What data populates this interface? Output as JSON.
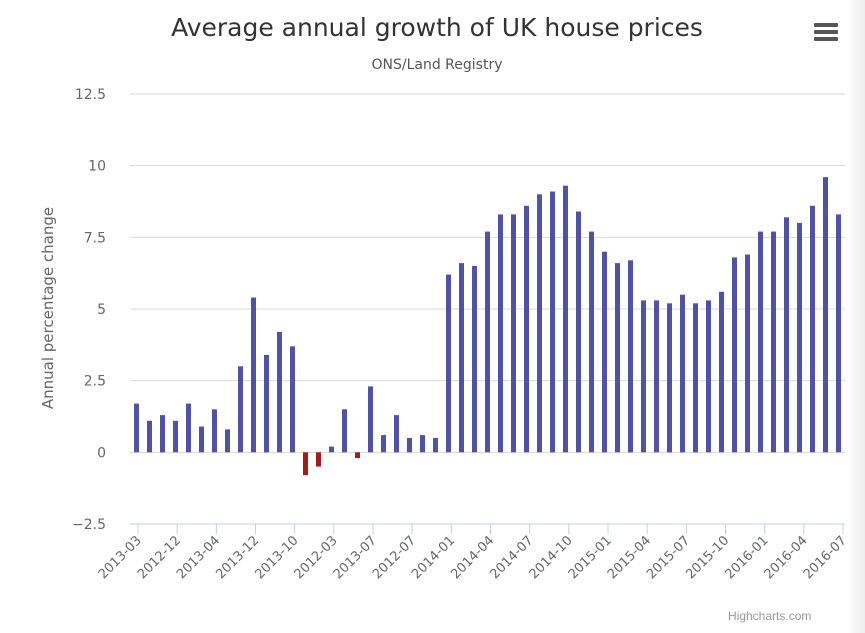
{
  "chart_data": {
    "type": "bar",
    "title": "Average annual growth of UK house prices",
    "subtitle": "ONS/Land Registry",
    "ylabel": "Annual percentage change",
    "xlabel": "",
    "ylim": [
      -2.5,
      12.5
    ],
    "yticks": [
      -2.5,
      0,
      2.5,
      5,
      7.5,
      10,
      12.5
    ],
    "ytick_labels": [
      "−2.5",
      "0",
      "2.5",
      "5",
      "7.5",
      "10",
      "12.5"
    ],
    "grid": true,
    "tick_labels": [
      "2013-03",
      "2012-12",
      "2013-04",
      "2013-12",
      "2013-10",
      "2012-03",
      "2013-07",
      "2012-07",
      "2014-01",
      "2014-04",
      "2014-07",
      "2014-10",
      "2015-01",
      "2015-04",
      "2015-07",
      "2015-10",
      "2016-01",
      "2016-04",
      "2016-07"
    ],
    "values": [
      1.7,
      1.1,
      1.3,
      1.1,
      1.7,
      0.9,
      1.5,
      0.8,
      3.0,
      5.4,
      3.4,
      4.2,
      3.7,
      -0.8,
      -0.5,
      0.2,
      1.5,
      -0.2,
      2.3,
      0.6,
      1.3,
      0.5,
      0.6,
      0.5,
      6.2,
      6.6,
      6.5,
      7.7,
      8.3,
      8.3,
      8.6,
      9.0,
      9.1,
      9.3,
      8.4,
      7.7,
      7.0,
      6.6,
      6.7,
      5.3,
      5.3,
      5.2,
      5.5,
      5.2,
      5.3,
      5.6,
      6.8,
      6.9,
      7.7,
      7.7,
      8.2,
      8.0,
      8.6,
      9.6,
      8.3
    ],
    "positive_color": "#4f53a8",
    "negative_color": "#a31b1b"
  },
  "credits": "Highcharts.com",
  "menu_icon": "hamburger-menu-icon"
}
